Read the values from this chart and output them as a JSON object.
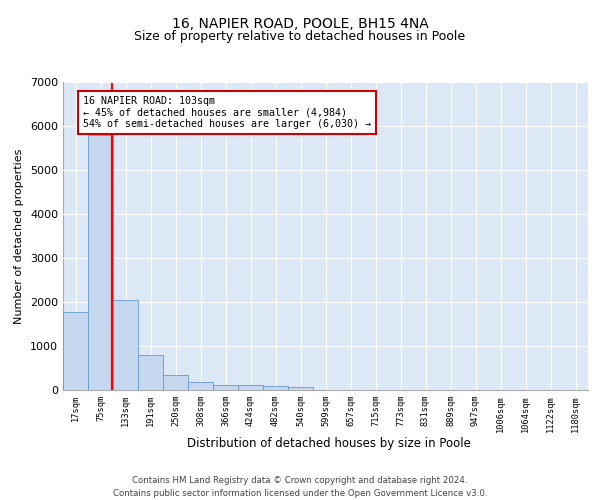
{
  "title_line1": "16, NAPIER ROAD, POOLE, BH15 4NA",
  "title_line2": "Size of property relative to detached houses in Poole",
  "xlabel": "Distribution of detached houses by size in Poole",
  "ylabel": "Number of detached properties",
  "annotation_line1": "16 NAPIER ROAD: 103sqm",
  "annotation_line2": "← 45% of detached houses are smaller (4,984)",
  "annotation_line3": "54% of semi-detached houses are larger (6,030) →",
  "footer_line1": "Contains HM Land Registry data © Crown copyright and database right 2024.",
  "footer_line2": "Contains public sector information licensed under the Open Government Licence v3.0.",
  "bin_labels": [
    "17sqm",
    "75sqm",
    "133sqm",
    "191sqm",
    "250sqm",
    "308sqm",
    "366sqm",
    "424sqm",
    "482sqm",
    "540sqm",
    "599sqm",
    "657sqm",
    "715sqm",
    "773sqm",
    "831sqm",
    "889sqm",
    "947sqm",
    "1006sqm",
    "1064sqm",
    "1122sqm",
    "1180sqm"
  ],
  "bar_values": [
    1780,
    5800,
    2060,
    800,
    340,
    185,
    120,
    110,
    100,
    60,
    0,
    0,
    0,
    0,
    0,
    0,
    0,
    0,
    0,
    0,
    0
  ],
  "bar_color": "#c5d8f0",
  "bar_edge_color": "#6699cc",
  "red_line_color": "#ff0000",
  "annotation_box_edgecolor": "#cc0000",
  "ylim": [
    0,
    7000
  ],
  "yticks": [
    0,
    1000,
    2000,
    3000,
    4000,
    5000,
    6000,
    7000
  ],
  "background_color": "#dce8f5",
  "grid_color": "#ffffff",
  "title_fontsize": 10,
  "subtitle_fontsize": 9
}
